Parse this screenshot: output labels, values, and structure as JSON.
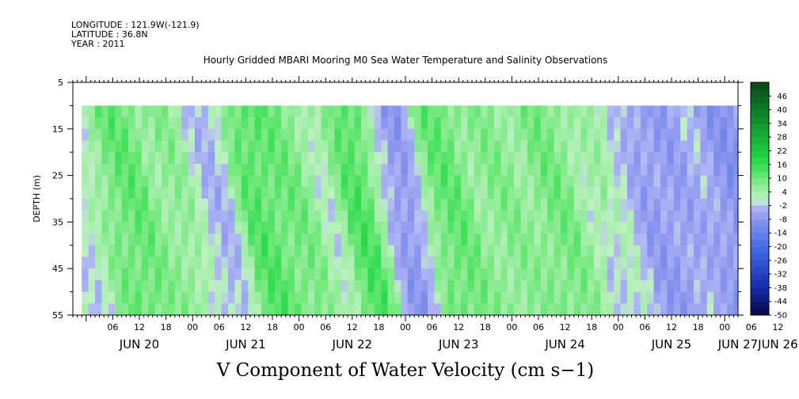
{
  "header": {
    "longitude": "LONGITUDE : 121.9W(-121.9)",
    "latitude": "LATITUDE : 36.8N",
    "year": "YEAR : 2011",
    "title": "Hourly Gridded MBARI Mooring M0 Sea Water Temperature and Salinity Observations"
  },
  "chart_data": {
    "type": "heatmap",
    "title": "V Component of Water Velocity (cm s−1)",
    "ylabel": "DEPTH (m)",
    "xlabel": "",
    "ylim": [
      55,
      5
    ],
    "y_ticks": [
      5,
      15,
      25,
      35,
      45,
      55
    ],
    "y_minor_step": 5,
    "x_hour_labels": [
      "06",
      "12",
      "18",
      "00",
      "06",
      "12",
      "18",
      "00",
      "06",
      "12",
      "18",
      "00",
      "06",
      "12",
      "18",
      "00",
      "06",
      "12",
      "18",
      "00",
      "06",
      "12",
      "18",
      "00",
      "06",
      "12",
      "18",
      "00",
      "06",
      "12",
      "18",
      "00"
    ],
    "x_day_labels": [
      "JUN 20",
      "JUN 21",
      "JUN 22",
      "JUN 23",
      "JUN 24",
      "JUN 25",
      "JUN 26",
      "JUN 27"
    ],
    "x_range": [
      "JUN 19 21:00",
      "JUN 27 03:00"
    ],
    "data_time_range": [
      "JUN 19 ~23:00",
      "JUN 27 ~02:00"
    ],
    "data_depth_range": [
      10,
      55
    ],
    "colorbar": {
      "levels": [
        46,
        40,
        34,
        28,
        22,
        16,
        10,
        4,
        -2,
        -8,
        -14,
        -20,
        -26,
        -32,
        -38,
        -44,
        -50
      ],
      "range": [
        -50,
        52
      ],
      "colors_positive": "#2ee84e",
      "colors_negative": "#8f9af0"
    },
    "v_velocity_bands": [
      {
        "time": "JUN 20 06",
        "v": 12
      },
      {
        "time": "JUN 20 18",
        "v": 8
      },
      {
        "time": "JUN 21 00",
        "v": -4
      },
      {
        "time": "JUN 21 12",
        "v": 14
      },
      {
        "time": "JUN 21 18",
        "v": 10
      },
      {
        "time": "JUN 22 12",
        "v": 16
      },
      {
        "time": "JUN 22 18",
        "v": -10
      },
      {
        "time": "JUN 23 06",
        "v": 12
      },
      {
        "time": "JUN 23 18",
        "v": 8
      },
      {
        "time": "JUN 24 06",
        "v": 10
      },
      {
        "time": "JUN 24 18",
        "v": 4
      },
      {
        "time": "JUN 25 06",
        "v": -4
      },
      {
        "time": "JUN 26 00",
        "v": -6
      }
    ]
  }
}
